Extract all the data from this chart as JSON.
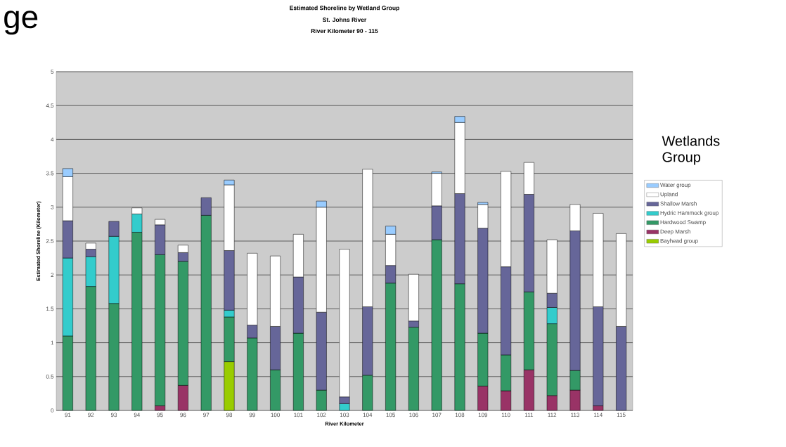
{
  "chart_data": {
    "type": "bar",
    "stacked": true,
    "title": "Estimated Shoreline by Wetland Group",
    "subtitle": "St. Johns River",
    "annotations": [
      "River Kilometer 90 - 115",
      "ge"
    ],
    "xlabel": "River Kilometer",
    "ylabel": "Estimated Shoreline (Kilometer)",
    "legend_title": "Wetlands Group",
    "categories": [
      "91",
      "92",
      "93",
      "94",
      "95",
      "96",
      "97",
      "98",
      "99",
      "100",
      "101",
      "102",
      "103",
      "104",
      "105",
      "106",
      "107",
      "108",
      "109",
      "110",
      "111",
      "112",
      "113",
      "114",
      "115"
    ],
    "series": [
      {
        "name": "Bayhead group",
        "color": "#99cc00",
        "values": [
          0,
          0,
          0,
          0,
          0,
          0,
          0,
          0.72,
          0,
          0,
          0,
          0,
          0,
          0,
          0,
          0,
          0,
          0,
          0,
          0,
          0,
          0,
          0,
          0,
          0
        ]
      },
      {
        "name": "Deep Marsh",
        "color": "#993366",
        "values": [
          0,
          0,
          0,
          0,
          0.07,
          0.37,
          0,
          0,
          0,
          0,
          0,
          0,
          0,
          0,
          0,
          0,
          0,
          0,
          0.36,
          0.29,
          0.6,
          0.22,
          0.3,
          0.07,
          0
        ]
      },
      {
        "name": "Hardwood Swamp",
        "color": "#339966",
        "values": [
          1.1,
          1.83,
          1.58,
          2.63,
          2.23,
          1.83,
          2.88,
          0.66,
          1.07,
          0.6,
          1.14,
          0.3,
          0,
          0.52,
          1.88,
          1.23,
          2.52,
          1.87,
          0.78,
          0.53,
          1.15,
          1.06,
          0.29,
          0,
          0
        ]
      },
      {
        "name": "Hydric Hammock group",
        "color": "#33cccc",
        "values": [
          1.15,
          0.44,
          0.99,
          0.27,
          0,
          0,
          0,
          0.1,
          0,
          0,
          0,
          0,
          0.1,
          0,
          0,
          0,
          0,
          0,
          0,
          0,
          0,
          0.24,
          0,
          0,
          0
        ]
      },
      {
        "name": "Shallow Marsh",
        "color": "#666699",
        "values": [
          0.55,
          0.11,
          0.22,
          0,
          0.44,
          0.13,
          0.26,
          0.88,
          0.19,
          0.64,
          0.83,
          1.15,
          0.1,
          1.01,
          0.26,
          0.09,
          0.5,
          1.33,
          1.55,
          1.3,
          1.44,
          0.21,
          2.06,
          1.46,
          1.24
        ]
      },
      {
        "name": "Upland",
        "color": "#ffffff",
        "values": [
          0.65,
          0.09,
          0,
          0.09,
          0.08,
          0.11,
          0,
          0.97,
          1.06,
          1.04,
          0.63,
          1.55,
          2.18,
          2.03,
          0.46,
          0.69,
          0.48,
          1.05,
          0.35,
          1.41,
          0.47,
          0.79,
          0.39,
          1.38,
          1.37
        ]
      },
      {
        "name": "Water group",
        "color": "#99ccff",
        "values": [
          0.12,
          0,
          0,
          0,
          0,
          0,
          0,
          0.07,
          0,
          0,
          0,
          0.09,
          0,
          0,
          0.12,
          0,
          0.02,
          0.09,
          0.03,
          0,
          0,
          0,
          0,
          0,
          0
        ]
      }
    ],
    "ylim": [
      0,
      5
    ],
    "yticks": [
      0,
      0.5,
      1,
      1.5,
      2,
      2.5,
      3,
      3.5,
      4,
      4.5,
      5
    ],
    "grid": "y",
    "legend": "right"
  }
}
